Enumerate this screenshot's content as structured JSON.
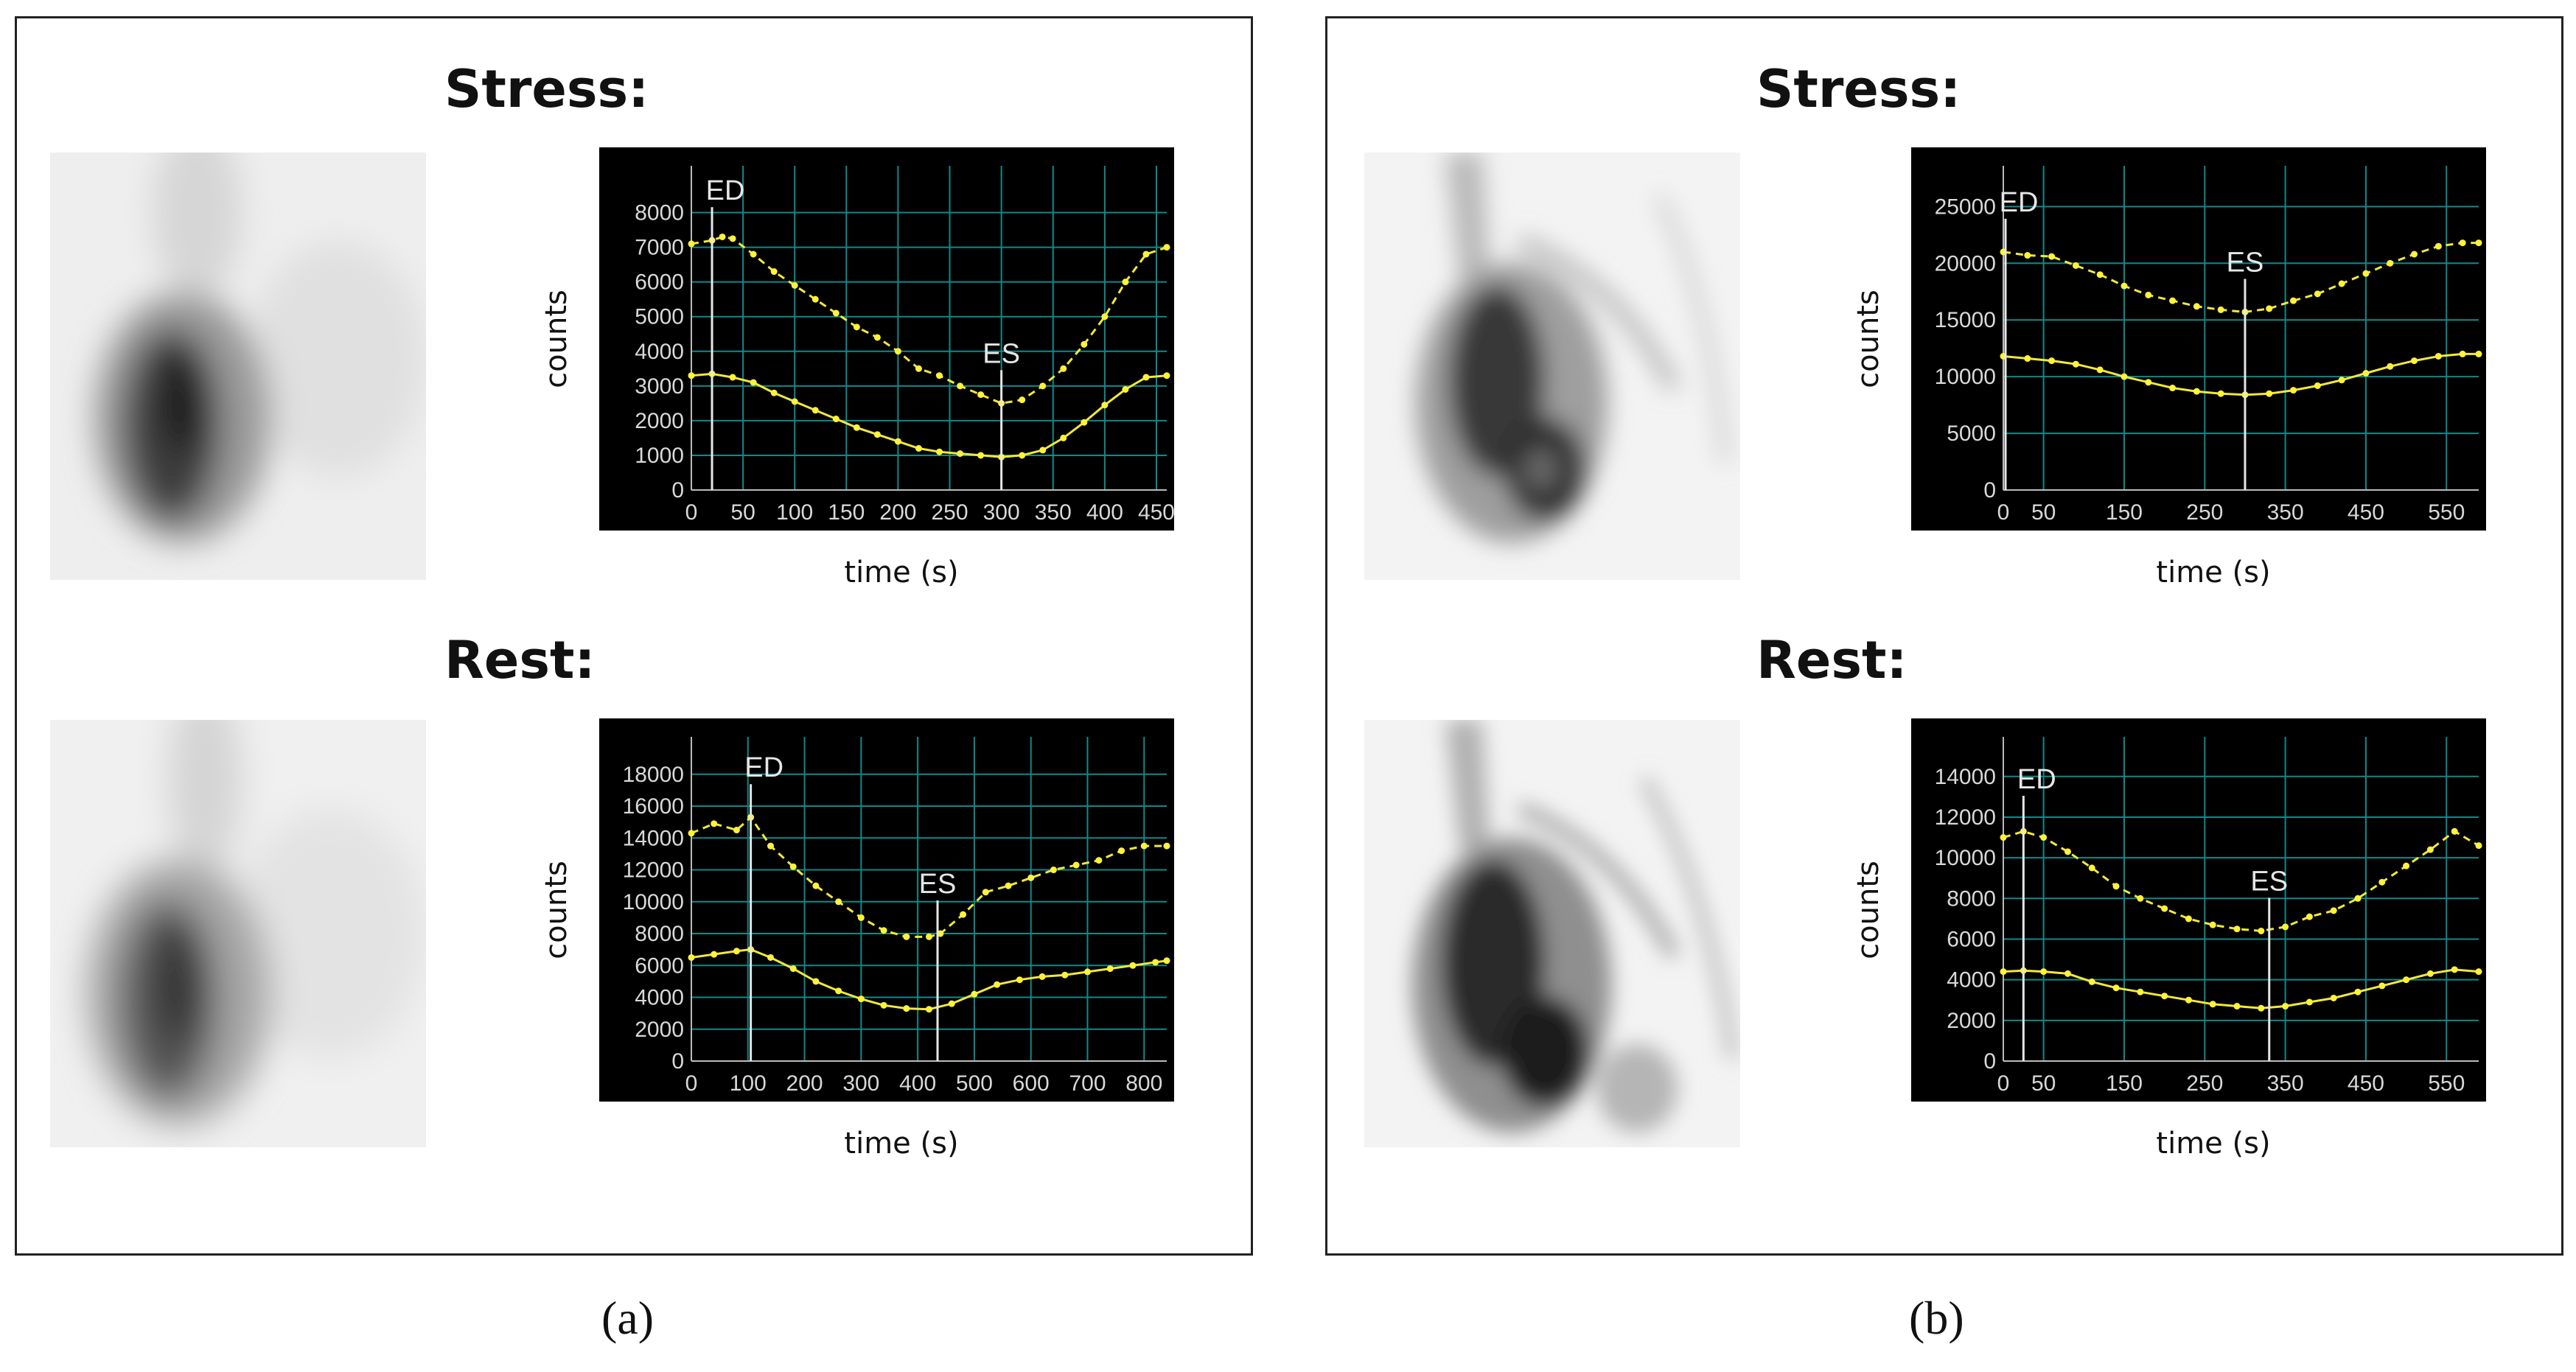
{
  "panels": [
    {
      "caption": "(a)",
      "stress_title": "Stress:",
      "rest_title": "Rest:"
    },
    {
      "caption": "(b)",
      "stress_title": "Stress:",
      "rest_title": "Rest:"
    }
  ],
  "chart_data": [
    {
      "id": "a-stress",
      "type": "line",
      "xlabel": "time (s)",
      "ylabel": "counts",
      "xlim": [
        0,
        460
      ],
      "ylim": [
        0,
        8500
      ],
      "xticks": [
        0,
        50,
        100,
        150,
        200,
        250,
        300,
        350,
        400,
        450
      ],
      "yticks": [
        0,
        1000,
        2000,
        3000,
        4000,
        5000,
        6000,
        7000,
        8000
      ],
      "markers": [
        {
          "label": "ED",
          "x": 20
        },
        {
          "label": "ES",
          "x": 300
        }
      ],
      "series": [
        {
          "name": "dashed",
          "style": "dashed",
          "x": [
            0,
            20,
            30,
            40,
            60,
            80,
            100,
            120,
            140,
            160,
            180,
            200,
            220,
            240,
            260,
            280,
            300,
            320,
            340,
            360,
            380,
            400,
            420,
            440,
            460
          ],
          "y": [
            7100,
            7200,
            7300,
            7250,
            6800,
            6300,
            5900,
            5500,
            5100,
            4700,
            4400,
            4000,
            3500,
            3300,
            3000,
            2750,
            2500,
            2600,
            3000,
            3500,
            4200,
            5000,
            6000,
            6800,
            7000
          ]
        },
        {
          "name": "solid",
          "style": "solid",
          "x": [
            0,
            20,
            40,
            60,
            80,
            100,
            120,
            140,
            160,
            180,
            200,
            220,
            240,
            260,
            280,
            300,
            320,
            340,
            360,
            380,
            400,
            420,
            440,
            460
          ],
          "y": [
            3300,
            3350,
            3250,
            3100,
            2800,
            2550,
            2300,
            2050,
            1800,
            1600,
            1400,
            1200,
            1100,
            1050,
            1000,
            950,
            1000,
            1150,
            1500,
            1950,
            2450,
            2900,
            3250,
            3300
          ]
        }
      ]
    },
    {
      "id": "a-rest",
      "type": "line",
      "xlabel": "time (s)",
      "ylabel": "counts",
      "xlim": [
        0,
        840
      ],
      "ylim": [
        0,
        18500
      ],
      "xticks": [
        0,
        100,
        200,
        300,
        400,
        500,
        600,
        700,
        800
      ],
      "yticks": [
        0,
        2000,
        4000,
        6000,
        8000,
        10000,
        12000,
        14000,
        16000,
        18000
      ],
      "markers": [
        {
          "label": "ED",
          "x": 105
        },
        {
          "label": "ES",
          "x": 435
        }
      ],
      "series": [
        {
          "name": "dashed",
          "style": "dashed",
          "x": [
            0,
            40,
            80,
            105,
            140,
            180,
            220,
            260,
            300,
            340,
            380,
            420,
            440,
            480,
            520,
            560,
            600,
            640,
            680,
            720,
            760,
            800,
            840
          ],
          "y": [
            14300,
            14900,
            14500,
            15300,
            13500,
            12200,
            11000,
            10000,
            9000,
            8200,
            7800,
            7800,
            8000,
            9200,
            10600,
            11000,
            11500,
            12000,
            12300,
            12600,
            13200,
            13500,
            13500
          ]
        },
        {
          "name": "solid",
          "style": "solid",
          "x": [
            0,
            40,
            80,
            105,
            140,
            180,
            220,
            260,
            300,
            340,
            380,
            420,
            460,
            500,
            540,
            580,
            620,
            660,
            700,
            740,
            780,
            820,
            840
          ],
          "y": [
            6500,
            6700,
            6900,
            7000,
            6500,
            5800,
            5000,
            4400,
            3900,
            3500,
            3300,
            3250,
            3600,
            4200,
            4800,
            5100,
            5300,
            5400,
            5600,
            5800,
            6000,
            6200,
            6300
          ]
        }
      ]
    },
    {
      "id": "b-stress",
      "type": "line",
      "xlabel": "time (s)",
      "ylabel": "counts",
      "xlim": [
        0,
        590
      ],
      "ylim": [
        0,
        26000
      ],
      "xticks": [
        0,
        50,
        150,
        250,
        350,
        450,
        550
      ],
      "yticks": [
        0,
        5000,
        10000,
        15000,
        20000,
        25000
      ],
      "markers": [
        {
          "label": "ED",
          "x": 0
        },
        {
          "label": "ES",
          "x": 300
        }
      ],
      "series": [
        {
          "name": "dashed",
          "style": "dashed",
          "x": [
            0,
            30,
            60,
            90,
            120,
            150,
            180,
            210,
            240,
            270,
            300,
            330,
            360,
            390,
            420,
            450,
            480,
            510,
            540,
            570,
            590
          ],
          "y": [
            21000,
            20700,
            20600,
            19800,
            19000,
            18000,
            17200,
            16700,
            16200,
            15900,
            15700,
            16000,
            16700,
            17300,
            18200,
            19100,
            20000,
            20800,
            21500,
            21800,
            21800
          ]
        },
        {
          "name": "solid",
          "style": "solid",
          "x": [
            0,
            30,
            60,
            90,
            120,
            150,
            180,
            210,
            240,
            270,
            300,
            330,
            360,
            390,
            420,
            450,
            480,
            510,
            540,
            570,
            590
          ],
          "y": [
            11800,
            11600,
            11400,
            11100,
            10600,
            10000,
            9500,
            9000,
            8700,
            8500,
            8400,
            8500,
            8800,
            9200,
            9700,
            10300,
            10900,
            11400,
            11800,
            12000,
            12000
          ]
        }
      ]
    },
    {
      "id": "b-rest",
      "type": "line",
      "xlabel": "time (s)",
      "ylabel": "counts",
      "xlim": [
        0,
        590
      ],
      "ylim": [
        0,
        14500
      ],
      "xticks": [
        0,
        50,
        150,
        250,
        350,
        450,
        550
      ],
      "yticks": [
        0,
        2000,
        4000,
        6000,
        8000,
        10000,
        12000,
        14000
      ],
      "markers": [
        {
          "label": "ED",
          "x": 25
        },
        {
          "label": "ES",
          "x": 330
        }
      ],
      "series": [
        {
          "name": "dashed",
          "style": "dashed",
          "x": [
            0,
            25,
            50,
            80,
            110,
            140,
            170,
            200,
            230,
            260,
            290,
            320,
            350,
            380,
            410,
            440,
            470,
            500,
            530,
            560,
            590
          ],
          "y": [
            11000,
            11300,
            11000,
            10300,
            9500,
            8600,
            8000,
            7500,
            7000,
            6700,
            6500,
            6400,
            6600,
            7100,
            7400,
            8000,
            8800,
            9600,
            10400,
            11300,
            10600
          ]
        },
        {
          "name": "solid",
          "style": "solid",
          "x": [
            0,
            25,
            50,
            80,
            110,
            140,
            170,
            200,
            230,
            260,
            290,
            320,
            350,
            380,
            410,
            440,
            470,
            500,
            530,
            560,
            590
          ],
          "y": [
            4400,
            4450,
            4400,
            4300,
            3900,
            3600,
            3400,
            3200,
            3000,
            2800,
            2700,
            2600,
            2700,
            2900,
            3100,
            3400,
            3700,
            4000,
            4300,
            4500,
            4400
          ]
        }
      ]
    }
  ]
}
